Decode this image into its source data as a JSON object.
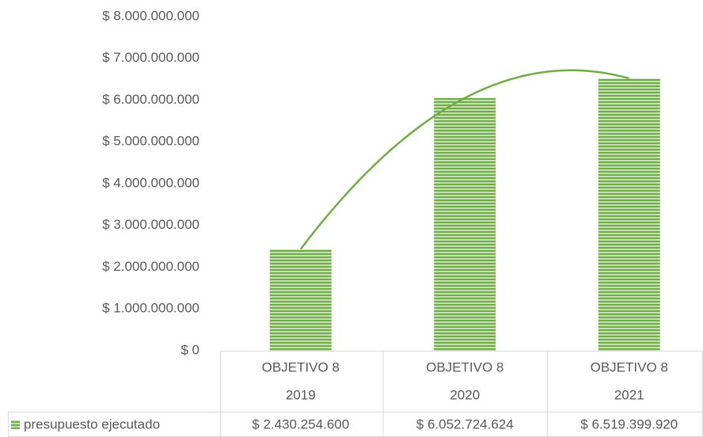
{
  "chart_data": {
    "type": "bar",
    "categories": [
      [
        "OBJETIVO 8",
        "2019"
      ],
      [
        "OBJETIVO 8",
        "2020"
      ],
      [
        "OBJETIVO 8",
        "2021"
      ]
    ],
    "series": [
      {
        "name": "presupuesto ejecutado",
        "color": "#70ad47",
        "values": [
          2430254600,
          6052724624,
          6519399920
        ],
        "value_labels": [
          "$ 2.430.254.600",
          "$ 6.052.724.624",
          "$ 6.519.399.920"
        ]
      }
    ],
    "ylim": [
      0,
      8000000000
    ],
    "yticks": [
      {
        "value": 0,
        "label": "$ 0"
      },
      {
        "value": 1000000000,
        "label": "$ 1.000.000.000"
      },
      {
        "value": 2000000000,
        "label": "$ 2.000.000.000"
      },
      {
        "value": 3000000000,
        "label": "$ 3.000.000.000"
      },
      {
        "value": 4000000000,
        "label": "$ 4.000.000.000"
      },
      {
        "value": 5000000000,
        "label": "$ 5.000.000.000"
      },
      {
        "value": 6000000000,
        "label": "$ 6.000.000.000"
      },
      {
        "value": 7000000000,
        "label": "$ 7.000.000.000"
      },
      {
        "value": 8000000000,
        "label": "$ 8.000.000.000"
      }
    ],
    "grid": false,
    "trendline": {
      "type": "polynomial",
      "order": 2,
      "color": "#70ad47"
    },
    "data_table": true
  }
}
